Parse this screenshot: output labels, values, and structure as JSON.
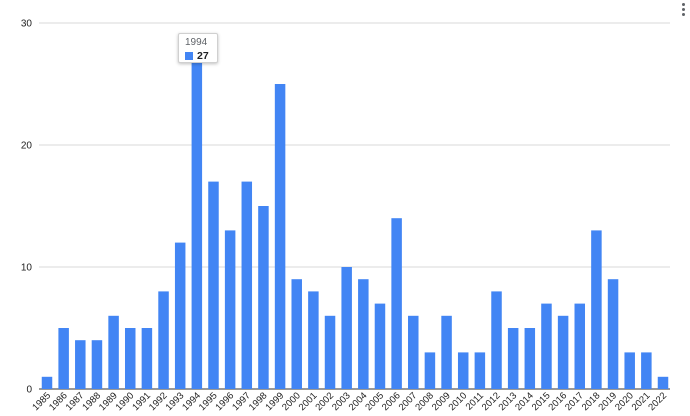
{
  "chart_data": {
    "type": "bar",
    "categories": [
      "1985",
      "1986",
      "1987",
      "1988",
      "1989",
      "1990",
      "1991",
      "1992",
      "1993",
      "1994",
      "1995",
      "1996",
      "1997",
      "1998",
      "1999",
      "2000",
      "2001",
      "2002",
      "2003",
      "2004",
      "2005",
      "2006",
      "2007",
      "2008",
      "2009",
      "2010",
      "2011",
      "2012",
      "2013",
      "2014",
      "2015",
      "2016",
      "2017",
      "2018",
      "2019",
      "2020",
      "2021",
      "2022"
    ],
    "values": [
      1,
      5,
      4,
      4,
      6,
      5,
      5,
      8,
      12,
      27,
      17,
      13,
      17,
      15,
      25,
      9,
      8,
      6,
      10,
      9,
      7,
      14,
      6,
      3,
      6,
      3,
      3,
      8,
      5,
      5,
      7,
      6,
      7,
      13,
      9,
      3,
      3,
      1
    ],
    "title": "",
    "xlabel": "",
    "ylabel": "",
    "ylim": [
      0,
      30
    ],
    "yticks": [
      0,
      10,
      20,
      30
    ],
    "grid": true,
    "bar_color": "#4285f4"
  },
  "tooltip": {
    "category": "1994",
    "value": "27"
  },
  "menu": {
    "icon": "more-vert-icon"
  }
}
